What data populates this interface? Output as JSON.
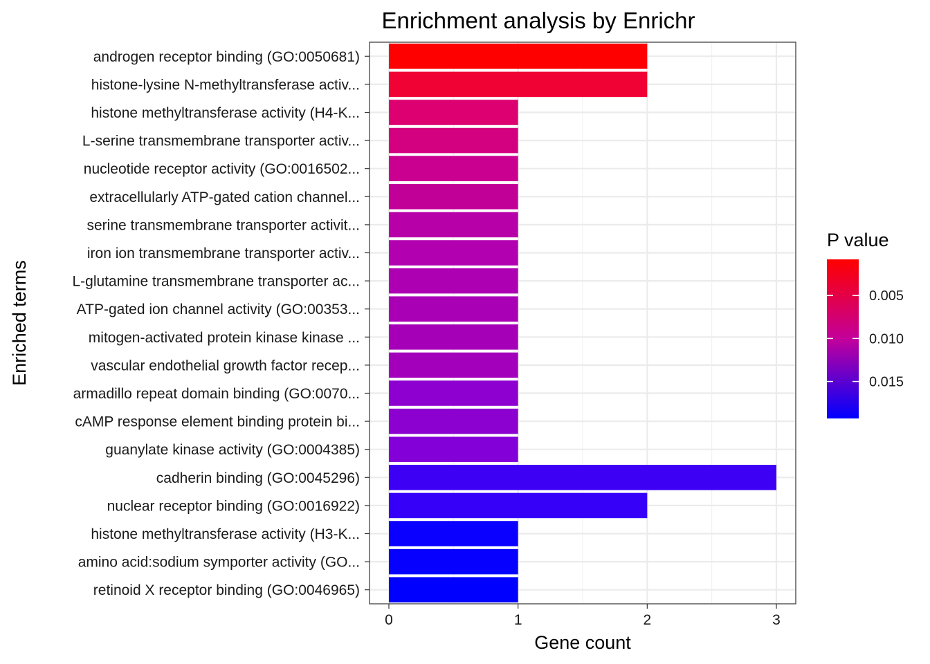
{
  "chart_data": {
    "type": "bar",
    "orientation": "horizontal",
    "title": "Enrichment analysis by Enrichr",
    "xlabel": "Gene count",
    "ylabel": "Enriched terms",
    "xlim": [
      -0.15,
      3.15
    ],
    "x_ticks": [
      "0",
      "1",
      "2",
      "3"
    ],
    "grid": true,
    "legend_position": "right",
    "legend": {
      "title": "P value",
      "type": "gradient",
      "low_color": "#ff0000",
      "high_color": "#0000ff",
      "range": [
        0.0008,
        0.0193
      ],
      "ticks": [
        "0.005",
        "0.010",
        "0.015"
      ]
    },
    "categories": [
      "androgen receptor binding (GO:0050681)",
      "histone-lysine N-methyltransferase activ...",
      "histone methyltransferase activity (H4-K...",
      "L-serine transmembrane transporter activ...",
      "nucleotide receptor activity (GO:0016502...",
      "extracellularly ATP-gated cation channel...",
      "serine transmembrane transporter activit...",
      "iron ion transmembrane transporter activ...",
      "L-glutamine transmembrane transporter ac...",
      "ATP-gated ion channel activity (GO:00353...",
      "mitogen-activated protein kinase kinase ...",
      "vascular endothelial growth factor recep...",
      "armadillo repeat domain binding (GO:0070...",
      "cAMP response element binding protein bi...",
      "guanylate kinase activity (GO:0004385)",
      "cadherin binding (GO:0045296)",
      "nuclear receptor binding (GO:0016922)",
      "histone methyltransferase activity (H3-K...",
      "amino acid:sodium symporter activity (GO...",
      "retinoid X receptor binding (GO:0046965)"
    ],
    "values": [
      2,
      2,
      1,
      1,
      1,
      1,
      1,
      1,
      1,
      1,
      1,
      1,
      1,
      1,
      1,
      3,
      2,
      1,
      1,
      1
    ],
    "colors": [
      "#ff0000",
      "#f00235",
      "#dd0070",
      "#d30080",
      "#c90090",
      "#c10098",
      "#b700a8",
      "#b200b0",
      "#ad00b2",
      "#aa00b5",
      "#a500b8",
      "#a300bb",
      "#8e00cf",
      "#8c00d0",
      "#8400d8",
      "#3d00f5",
      "#3600f8",
      "#0a00ff",
      "#0600ff",
      "#0000ff"
    ]
  }
}
